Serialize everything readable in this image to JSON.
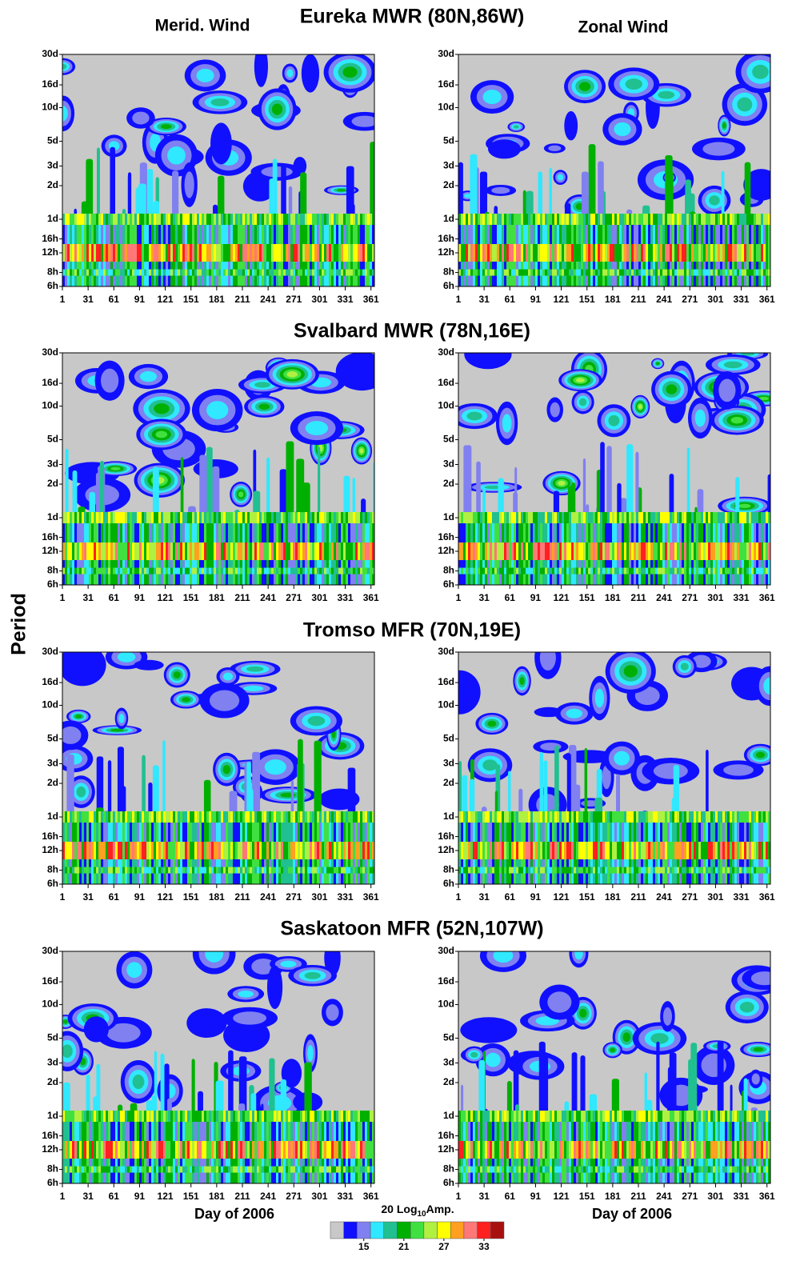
{
  "figure": {
    "column_titles": [
      "Merid. Wind",
      "Zonal  Wind"
    ],
    "stations": [
      "Eureka MWR (80N,86W)",
      "Svalbard MWR (78N,16E)",
      "Tromso MFR (70N,19E)",
      "Saskatoon MFR (52N,107W)"
    ],
    "y_label": "Period",
    "x_label": "Day of 2006",
    "axes": {
      "xlim": [
        1,
        365
      ],
      "xticks": [
        1,
        31,
        61,
        91,
        121,
        151,
        181,
        211,
        241,
        271,
        301,
        331,
        361
      ],
      "y_scale": "log",
      "ylim": [
        6,
        720
      ],
      "yticks": [
        {
          "value": 6,
          "label": "6h"
        },
        {
          "value": 8,
          "label": "8h"
        },
        {
          "value": 12,
          "label": "12h"
        },
        {
          "value": 16,
          "label": "16h"
        },
        {
          "value": 24,
          "label": "1d"
        },
        {
          "value": 48,
          "label": "2d"
        },
        {
          "value": 72,
          "label": "3d"
        },
        {
          "value": 120,
          "label": "5d"
        },
        {
          "value": 240,
          "label": "10d"
        },
        {
          "value": 384,
          "label": "16d"
        },
        {
          "value": 720,
          "label": "30d"
        }
      ]
    },
    "colorbar": {
      "title_parts": [
        "20 Log",
        "10",
        "Amp."
      ],
      "levels": [
        10,
        12,
        14,
        16,
        18,
        20,
        22,
        24,
        26,
        28,
        30,
        32,
        34,
        36
      ],
      "colors": [
        "#c8c8c8",
        "#1010ff",
        "#8080f0",
        "#30e8ff",
        "#20c090",
        "#00b000",
        "#40e040",
        "#b0f040",
        "#ffff00",
        "#ffa020",
        "#ff7878",
        "#ff2020",
        "#a81010"
      ],
      "ticks": [
        15,
        21,
        27,
        33
      ]
    }
  }
}
